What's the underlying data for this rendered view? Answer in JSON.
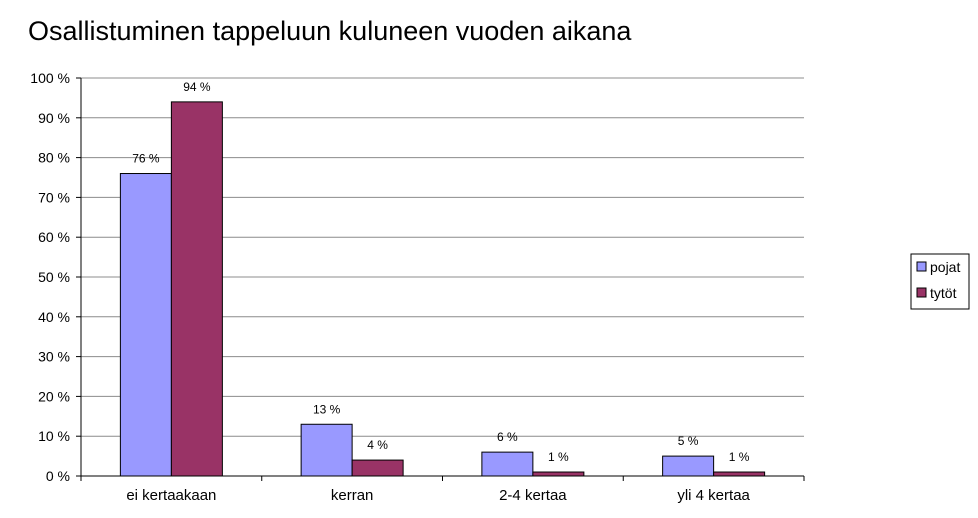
{
  "chart_data": {
    "type": "bar",
    "title": "Osallistuminen tappeluun kuluneen vuoden aikana",
    "xlabel": "",
    "ylabel": "",
    "categories": [
      "ei kertaakaan",
      "kerran",
      "2-4 kertaa",
      "yli 4 kertaa"
    ],
    "series": [
      {
        "name": "pojat",
        "values": [
          76,
          13,
          6,
          5
        ],
        "labels": [
          "76 %",
          "13 %",
          "6 %",
          "5 %"
        ],
        "color": "#9999ff"
      },
      {
        "name": "tytöt",
        "values": [
          94,
          4,
          1,
          1
        ],
        "labels": [
          "94 %",
          "4 %",
          "1 %",
          "1 %"
        ],
        "color": "#993366"
      }
    ],
    "ylim": [
      0,
      100
    ],
    "y_ticks": [
      "0 %",
      "10 %",
      "20 %",
      "30 %",
      "40 %",
      "50 %",
      "60 %",
      "70 %",
      "80 %",
      "90 %",
      "100 %"
    ],
    "y_tick_values": [
      0,
      10,
      20,
      30,
      40,
      50,
      60,
      70,
      80,
      90,
      100
    ],
    "grid": true,
    "legend": "right"
  }
}
